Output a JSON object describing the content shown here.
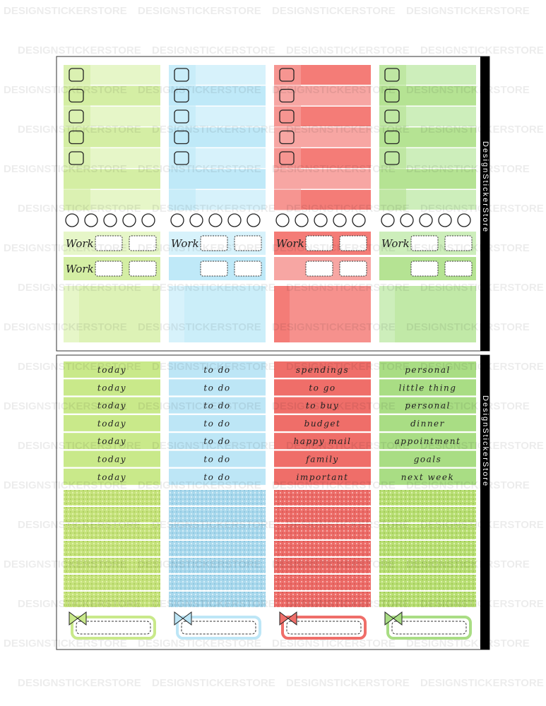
{
  "watermark": "DESIGNSTICKERSTORE",
  "side_text": "DesignStickerStore",
  "work_labels": [
    "Work",
    "Work",
    "Work",
    "Work",
    "Work"
  ],
  "columns": [
    {
      "labels": [
        "today",
        "today",
        "today",
        "today",
        "today",
        "today",
        "today"
      ]
    },
    {
      "labels": [
        "to do",
        "to do",
        "to do",
        "to do",
        "to do",
        "to do",
        "to do"
      ]
    },
    {
      "labels": [
        "spendings",
        "to go",
        "to buy",
        "budget",
        "happy mail",
        "family",
        "important"
      ]
    },
    {
      "labels": [
        "personal",
        "little thing",
        "personal",
        "dinner",
        "appointment",
        "goals",
        "next week"
      ]
    }
  ]
}
